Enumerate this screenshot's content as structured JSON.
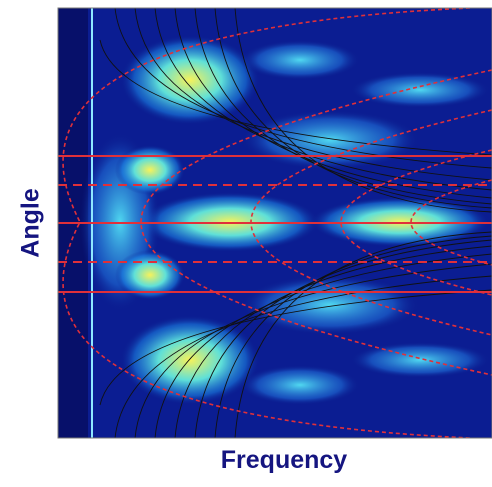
{
  "figure": {
    "y_label": "Angle",
    "x_label": "Frequency"
  }
}
